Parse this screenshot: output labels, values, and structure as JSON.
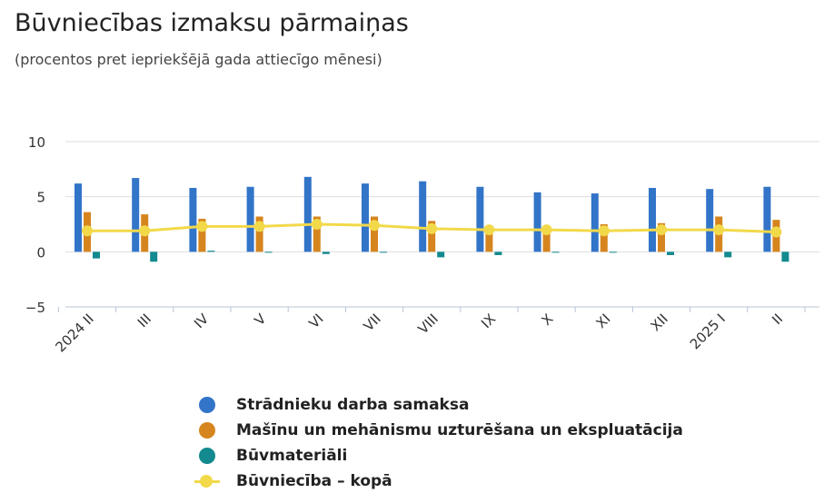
{
  "title": "Būvniecības izmaksu pārmaiņas",
  "subtitle": "(procentos pret iepriekšējā gada attiecīgo mēnesi)",
  "colors": {
    "labor": "#3274c8",
    "machinery": "#d6851e",
    "materials": "#128a8f",
    "total": "#f2d94a",
    "grid": "#dedede",
    "axis": "#b8c4d6"
  },
  "chart_data": {
    "type": "bar",
    "categories": [
      "2024 II",
      "III",
      "IV",
      "V",
      "VI",
      "VII",
      "VIII",
      "IX",
      "X",
      "XI",
      "XII",
      "2025 I",
      "II"
    ],
    "y_ticks": [
      "10",
      "5",
      "0",
      "−5"
    ],
    "ylim": [
      -5,
      10
    ],
    "grid": true,
    "legend_position": "bottom",
    "series": [
      {
        "name": "Strādnieku darba samaksa",
        "type": "bar",
        "values": [
          6.2,
          6.7,
          5.8,
          5.9,
          6.8,
          6.2,
          6.4,
          5.9,
          5.4,
          5.3,
          5.8,
          5.7,
          5.9
        ]
      },
      {
        "name": "Mašīnu un mehānismu uzturēšana un ekspluatācija",
        "type": "bar",
        "values": [
          3.6,
          3.4,
          3.0,
          3.2,
          3.2,
          3.2,
          2.8,
          2.2,
          1.9,
          2.5,
          2.6,
          3.2,
          2.9
        ]
      },
      {
        "name": "Būvmateriāli",
        "type": "bar",
        "values": [
          -0.6,
          -0.9,
          0.1,
          0.0,
          -0.2,
          0.0,
          -0.5,
          -0.3,
          0.0,
          0.0,
          -0.3,
          -0.5,
          -0.9
        ]
      },
      {
        "name": "Būvniecība – kopā",
        "type": "line",
        "values": [
          1.9,
          1.9,
          2.3,
          2.3,
          2.5,
          2.4,
          2.1,
          2.0,
          2.0,
          1.9,
          2.0,
          2.0,
          1.8
        ]
      }
    ]
  }
}
